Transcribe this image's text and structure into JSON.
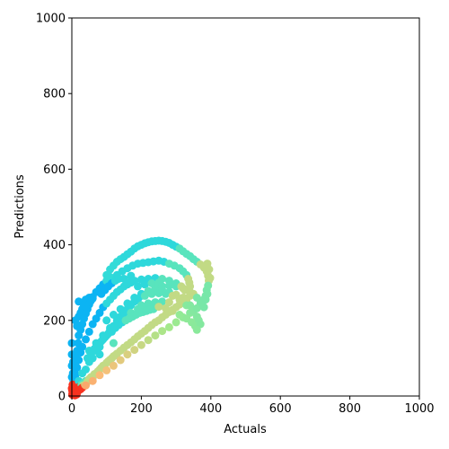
{
  "chart_data": {
    "type": "scatter",
    "xlabel": "Actuals",
    "ylabel": "Predictions",
    "xlim": [
      0,
      1000
    ],
    "ylim": [
      0,
      1000
    ],
    "xticks": [
      "0",
      "200",
      "400",
      "600",
      "800",
      "1000"
    ],
    "yticks": [
      "0",
      "200",
      "400",
      "600",
      "800",
      "1000"
    ],
    "grid": false,
    "colormap": "rainbow",
    "series": [
      {
        "points": [
          [
            2,
            3
          ],
          [
            5,
            6
          ],
          [
            8,
            10
          ],
          [
            10,
            4
          ],
          [
            12,
            14
          ],
          [
            15,
            9
          ],
          [
            18,
            20
          ],
          [
            20,
            15
          ],
          [
            22,
            25
          ],
          [
            25,
            18
          ],
          [
            28,
            30
          ],
          [
            30,
            22
          ],
          [
            33,
            28
          ],
          [
            35,
            35
          ],
          [
            38,
            30
          ],
          [
            40,
            40
          ],
          [
            3,
            12
          ],
          [
            6,
            18
          ],
          [
            9,
            2
          ],
          [
            14,
            4
          ],
          [
            45,
            38
          ],
          [
            50,
            45
          ],
          [
            55,
            50
          ],
          [
            60,
            48
          ],
          [
            65,
            58
          ],
          [
            70,
            60
          ],
          [
            75,
            65
          ],
          [
            80,
            70
          ],
          [
            85,
            75
          ],
          [
            90,
            80
          ],
          [
            95,
            82
          ],
          [
            100,
            88
          ],
          [
            105,
            92
          ],
          [
            110,
            96
          ],
          [
            115,
            100
          ],
          [
            120,
            105
          ],
          [
            125,
            108
          ],
          [
            130,
            112
          ],
          [
            140,
            120
          ],
          [
            150,
            128
          ],
          [
            160,
            135
          ],
          [
            170,
            142
          ],
          [
            180,
            150
          ],
          [
            190,
            158
          ],
          [
            200,
            165
          ],
          [
            210,
            172
          ],
          [
            220,
            180
          ],
          [
            230,
            188
          ],
          [
            240,
            195
          ],
          [
            250,
            200
          ],
          [
            260,
            208
          ],
          [
            270,
            215
          ],
          [
            280,
            222
          ],
          [
            290,
            228
          ],
          [
            300,
            235
          ],
          [
            310,
            242
          ],
          [
            320,
            250
          ],
          [
            330,
            258
          ],
          [
            340,
            265
          ],
          [
            350,
            270
          ],
          [
            40,
            28
          ],
          [
            60,
            40
          ],
          [
            80,
            55
          ],
          [
            100,
            68
          ],
          [
            120,
            80
          ],
          [
            140,
            95
          ],
          [
            160,
            110
          ],
          [
            180,
            122
          ],
          [
            200,
            135
          ],
          [
            220,
            148
          ],
          [
            240,
            160
          ],
          [
            260,
            172
          ],
          [
            280,
            182
          ],
          [
            300,
            195
          ],
          [
            320,
            208
          ],
          [
            340,
            220
          ],
          [
            360,
            232
          ],
          [
            375,
            245
          ],
          [
            385,
            255
          ],
          [
            390,
            270
          ],
          [
            5,
            40
          ],
          [
            8,
            60
          ],
          [
            10,
            80
          ],
          [
            12,
            100
          ],
          [
            15,
            120
          ],
          [
            18,
            140
          ],
          [
            20,
            160
          ],
          [
            25,
            175
          ],
          [
            30,
            190
          ],
          [
            35,
            205
          ],
          [
            40,
            218
          ],
          [
            45,
            230
          ],
          [
            50,
            242
          ],
          [
            55,
            252
          ],
          [
            60,
            262
          ],
          [
            70,
            275
          ],
          [
            80,
            285
          ],
          [
            90,
            295
          ],
          [
            100,
            305
          ],
          [
            110,
            315
          ],
          [
            5,
            30
          ],
          [
            10,
            55
          ],
          [
            15,
            75
          ],
          [
            20,
            95
          ],
          [
            25,
            115
          ],
          [
            30,
            130
          ],
          [
            40,
            150
          ],
          [
            50,
            170
          ],
          [
            60,
            190
          ],
          [
            70,
            205
          ],
          [
            80,
            220
          ],
          [
            90,
            235
          ],
          [
            100,
            245
          ],
          [
            110,
            255
          ],
          [
            120,
            265
          ],
          [
            130,
            275
          ],
          [
            140,
            282
          ],
          [
            150,
            290
          ],
          [
            160,
            295
          ],
          [
            170,
            300
          ],
          [
            20,
            40
          ],
          [
            40,
            70
          ],
          [
            60,
            100
          ],
          [
            80,
            130
          ],
          [
            100,
            160
          ],
          [
            120,
            185
          ],
          [
            140,
            210
          ],
          [
            160,
            230
          ],
          [
            180,
            250
          ],
          [
            200,
            265
          ],
          [
            220,
            275
          ],
          [
            240,
            285
          ],
          [
            260,
            290
          ],
          [
            280,
            292
          ],
          [
            300,
            290
          ],
          [
            320,
            285
          ],
          [
            340,
            275
          ],
          [
            360,
            260
          ],
          [
            370,
            245
          ],
          [
            380,
            235
          ],
          [
            30,
            60
          ],
          [
            50,
            90
          ],
          [
            70,
            120
          ],
          [
            90,
            150
          ],
          [
            110,
            175
          ],
          [
            130,
            200
          ],
          [
            150,
            220
          ],
          [
            170,
            240
          ],
          [
            190,
            255
          ],
          [
            210,
            265
          ],
          [
            230,
            270
          ],
          [
            250,
            272
          ],
          [
            270,
            270
          ],
          [
            290,
            265
          ],
          [
            310,
            255
          ],
          [
            330,
            240
          ],
          [
            350,
            225
          ],
          [
            360,
            210
          ],
          [
            365,
            200
          ],
          [
            370,
            190
          ],
          [
            50,
            120
          ],
          [
            70,
            140
          ],
          [
            90,
            160
          ],
          [
            110,
            180
          ],
          [
            130,
            195
          ],
          [
            150,
            210
          ],
          [
            170,
            220
          ],
          [
            190,
            230
          ],
          [
            210,
            235
          ],
          [
            230,
            238
          ],
          [
            250,
            236
          ],
          [
            270,
            232
          ],
          [
            290,
            225
          ],
          [
            310,
            215
          ],
          [
            330,
            205
          ],
          [
            345,
            195
          ],
          [
            355,
            185
          ],
          [
            360,
            175
          ],
          [
            80,
            110
          ],
          [
            120,
            140
          ],
          [
            100,
            320
          ],
          [
            110,
            335
          ],
          [
            120,
            345
          ],
          [
            130,
            355
          ],
          [
            140,
            362
          ],
          [
            150,
            368
          ],
          [
            160,
            375
          ],
          [
            170,
            382
          ],
          [
            180,
            390
          ],
          [
            190,
            396
          ],
          [
            200,
            400
          ],
          [
            210,
            404
          ],
          [
            220,
            407
          ],
          [
            230,
            409
          ],
          [
            240,
            410
          ],
          [
            250,
            411
          ],
          [
            260,
            410
          ],
          [
            270,
            408
          ],
          [
            280,
            405
          ],
          [
            290,
            400
          ],
          [
            300,
            395
          ],
          [
            310,
            390
          ],
          [
            320,
            383
          ],
          [
            330,
            376
          ],
          [
            340,
            370
          ],
          [
            350,
            362
          ],
          [
            360,
            355
          ],
          [
            370,
            348
          ],
          [
            380,
            340
          ],
          [
            388,
            330
          ],
          [
            392,
            318
          ],
          [
            394,
            305
          ],
          [
            392,
            292
          ],
          [
            388,
            280
          ],
          [
            385,
            265
          ],
          [
            380,
            255
          ],
          [
            375,
            248
          ],
          [
            390,
            350
          ],
          [
            395,
            335
          ],
          [
            398,
            312
          ],
          [
            130,
            320
          ],
          [
            145,
            330
          ],
          [
            160,
            338
          ],
          [
            175,
            345
          ],
          [
            190,
            350
          ],
          [
            205,
            352
          ],
          [
            220,
            354
          ],
          [
            235,
            356
          ],
          [
            250,
            358
          ],
          [
            265,
            355
          ],
          [
            280,
            350
          ],
          [
            295,
            345
          ],
          [
            310,
            338
          ],
          [
            320,
            330
          ],
          [
            330,
            320
          ],
          [
            335,
            310
          ],
          [
            338,
            300
          ],
          [
            340,
            290
          ],
          [
            150,
            310
          ],
          [
            170,
            318
          ],
          [
            160,
            300
          ],
          [
            180,
            305
          ],
          [
            200,
            308
          ],
          [
            220,
            310
          ],
          [
            240,
            312
          ],
          [
            260,
            310
          ],
          [
            280,
            305
          ],
          [
            300,
            298
          ],
          [
            315,
            290
          ],
          [
            325,
            280
          ],
          [
            85,
            270
          ],
          [
            95,
            280
          ],
          [
            105,
            290
          ],
          [
            115,
            298
          ],
          [
            125,
            305
          ],
          [
            135,
            310
          ],
          [
            190,
            290
          ],
          [
            210,
            295
          ],
          [
            230,
            298
          ],
          [
            250,
            300
          ],
          [
            100,
            200
          ],
          [
            120,
            215
          ],
          [
            140,
            230
          ],
          [
            160,
            245
          ],
          [
            180,
            260
          ],
          [
            200,
            270
          ],
          [
            220,
            278
          ],
          [
            240,
            282
          ],
          [
            260,
            280
          ],
          [
            280,
            275
          ],
          [
            300,
            268
          ],
          [
            320,
            260
          ],
          [
            330,
            250
          ],
          [
            340,
            240
          ],
          [
            350,
            230
          ],
          [
            200,
            240
          ],
          [
            220,
            245
          ],
          [
            240,
            248
          ],
          [
            260,
            250
          ],
          [
            280,
            248
          ],
          [
            45,
            100
          ],
          [
            55,
            110
          ],
          [
            65,
            125
          ],
          [
            75,
            135
          ],
          [
            85,
            145
          ],
          [
            95,
            155
          ],
          [
            105,
            165
          ],
          [
            115,
            170
          ],
          [
            125,
            180
          ],
          [
            135,
            188
          ],
          [
            145,
            195
          ],
          [
            155,
            200
          ],
          [
            165,
            205
          ],
          [
            175,
            210
          ],
          [
            185,
            215
          ],
          [
            195,
            220
          ],
          [
            205,
            222
          ],
          [
            215,
            225
          ],
          [
            225,
            228
          ],
          [
            235,
            230
          ],
          [
            10,
            200
          ],
          [
            15,
            185
          ],
          [
            20,
            210
          ],
          [
            25,
            220
          ],
          [
            30,
            230
          ],
          [
            35,
            240
          ],
          [
            20,
            250
          ],
          [
            40,
            255
          ],
          [
            50,
            260
          ],
          [
            60,
            258
          ],
          [
            0,
            20
          ],
          [
            0,
            50
          ],
          [
            0,
            80
          ],
          [
            0,
            110
          ],
          [
            0,
            140
          ],
          [
            2,
            30
          ],
          [
            3,
            60
          ],
          [
            4,
            90
          ],
          [
            1,
            5
          ],
          [
            1,
            15
          ]
        ]
      }
    ]
  }
}
